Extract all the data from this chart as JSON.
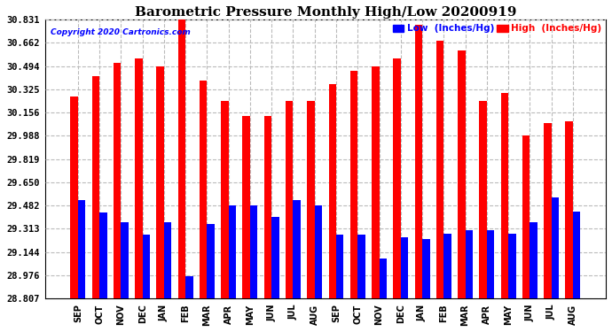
{
  "title": "Barometric Pressure Monthly High/Low 20200919",
  "copyright": "Copyright 2020 Cartronics.com",
  "legend_low": "Low  (Inches/Hg)",
  "legend_high": "High  (Inches/Hg)",
  "months": [
    "SEP",
    "OCT",
    "NOV",
    "DEC",
    "JAN",
    "FEB",
    "MAR",
    "APR",
    "MAY",
    "JUN",
    "JUL",
    "AUG",
    "SEP",
    "OCT",
    "NOV",
    "DEC",
    "JAN",
    "FEB",
    "MAR",
    "APR",
    "MAY",
    "JUN",
    "JUL",
    "AUG"
  ],
  "high_values": [
    30.27,
    30.42,
    30.52,
    30.55,
    30.49,
    30.83,
    30.39,
    30.24,
    30.13,
    30.13,
    30.24,
    30.24,
    30.36,
    30.46,
    30.49,
    30.55,
    30.79,
    30.68,
    30.61,
    30.24,
    30.3,
    29.99,
    30.08,
    30.09
  ],
  "low_values": [
    29.52,
    29.43,
    29.36,
    29.27,
    29.36,
    28.97,
    29.35,
    29.48,
    29.48,
    29.4,
    29.52,
    29.48,
    29.27,
    29.27,
    29.1,
    29.25,
    29.24,
    29.28,
    29.3,
    29.3,
    29.28,
    29.36,
    29.54,
    29.44
  ],
  "high_color": "#ff0000",
  "low_color": "#0000ff",
  "background_color": "#ffffff",
  "grid_color": "#bbbbbb",
  "ylim_min": 28.807,
  "ylim_max": 30.831,
  "yticks": [
    28.807,
    28.976,
    29.144,
    29.313,
    29.482,
    29.65,
    29.819,
    29.988,
    30.156,
    30.325,
    30.494,
    30.662,
    30.831
  ],
  "bar_width": 0.35,
  "title_fontsize": 11,
  "tick_fontsize": 7,
  "ytick_fontsize": 7.5
}
